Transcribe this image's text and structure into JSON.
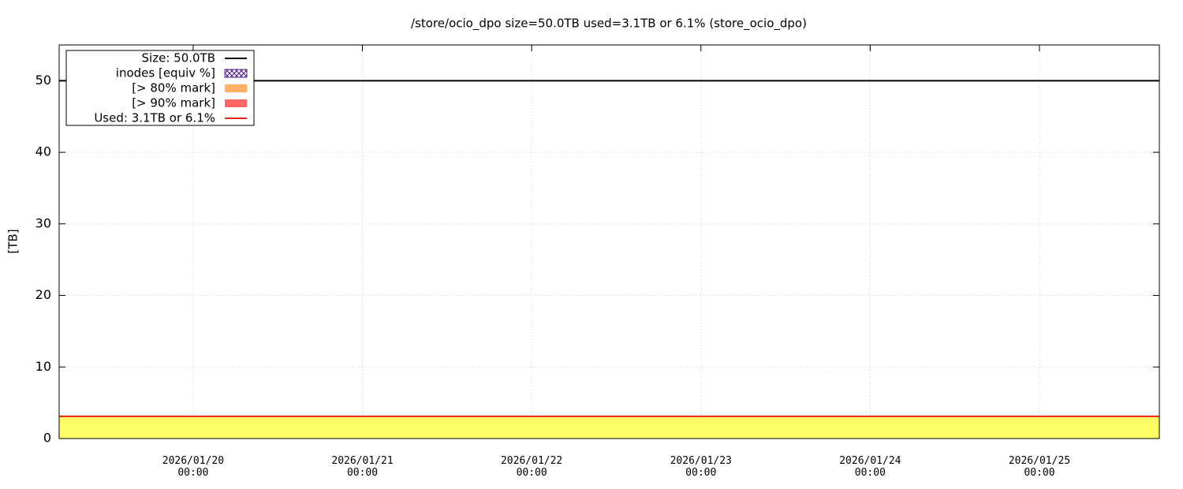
{
  "chart_data": {
    "type": "line",
    "title": "/store/ocio_dpo size=50.0TB used=3.1TB or 6.1% (store_ocio_dpo)",
    "y_label": "[TB]",
    "x": [
      "2026-01-19T05:00",
      "2026-01-25T17:00"
    ],
    "xlim": [
      "2026-01-19T05:00",
      "2026-01-25T17:00"
    ],
    "xticks": [
      {
        "value": "2026-01-20T00:00",
        "label": "2026/01/20\n00:00"
      },
      {
        "value": "2026-01-21T00:00",
        "label": "2026/01/21\n00:00"
      },
      {
        "value": "2026-01-22T00:00",
        "label": "2026/01/22\n00:00"
      },
      {
        "value": "2026-01-23T00:00",
        "label": "2026/01/23\n00:00"
      },
      {
        "value": "2026-01-24T00:00",
        "label": "2026/01/24\n00:00"
      },
      {
        "value": "2026-01-25T00:00",
        "label": "2026/01/25\n00:00"
      }
    ],
    "ylim": [
      0,
      55
    ],
    "yticks": [
      0,
      10,
      20,
      30,
      40,
      50
    ],
    "grid": true,
    "legend": "upper left",
    "series": [
      {
        "name": "Size: 50.0TB",
        "color": "#000000",
        "style": "line",
        "values": [
          50,
          50
        ]
      },
      {
        "name": "inodes [equiv %]",
        "color": "#5b2a8e",
        "style": "dashdot",
        "values": [
          0.5,
          0.5
        ]
      },
      {
        "name": "[> 80% mark]",
        "color": "#ffb066",
        "style": "area",
        "values": [
          null,
          null
        ]
      },
      {
        "name": "[> 90% mark]",
        "color": "#ff6666",
        "style": "area",
        "values": [
          null,
          null
        ]
      },
      {
        "name": "Used: 3.1TB or 6.1%",
        "color": "#e8201a",
        "fill": "#ffff66",
        "style": "line",
        "values": [
          3.1,
          3.1
        ]
      }
    ]
  }
}
